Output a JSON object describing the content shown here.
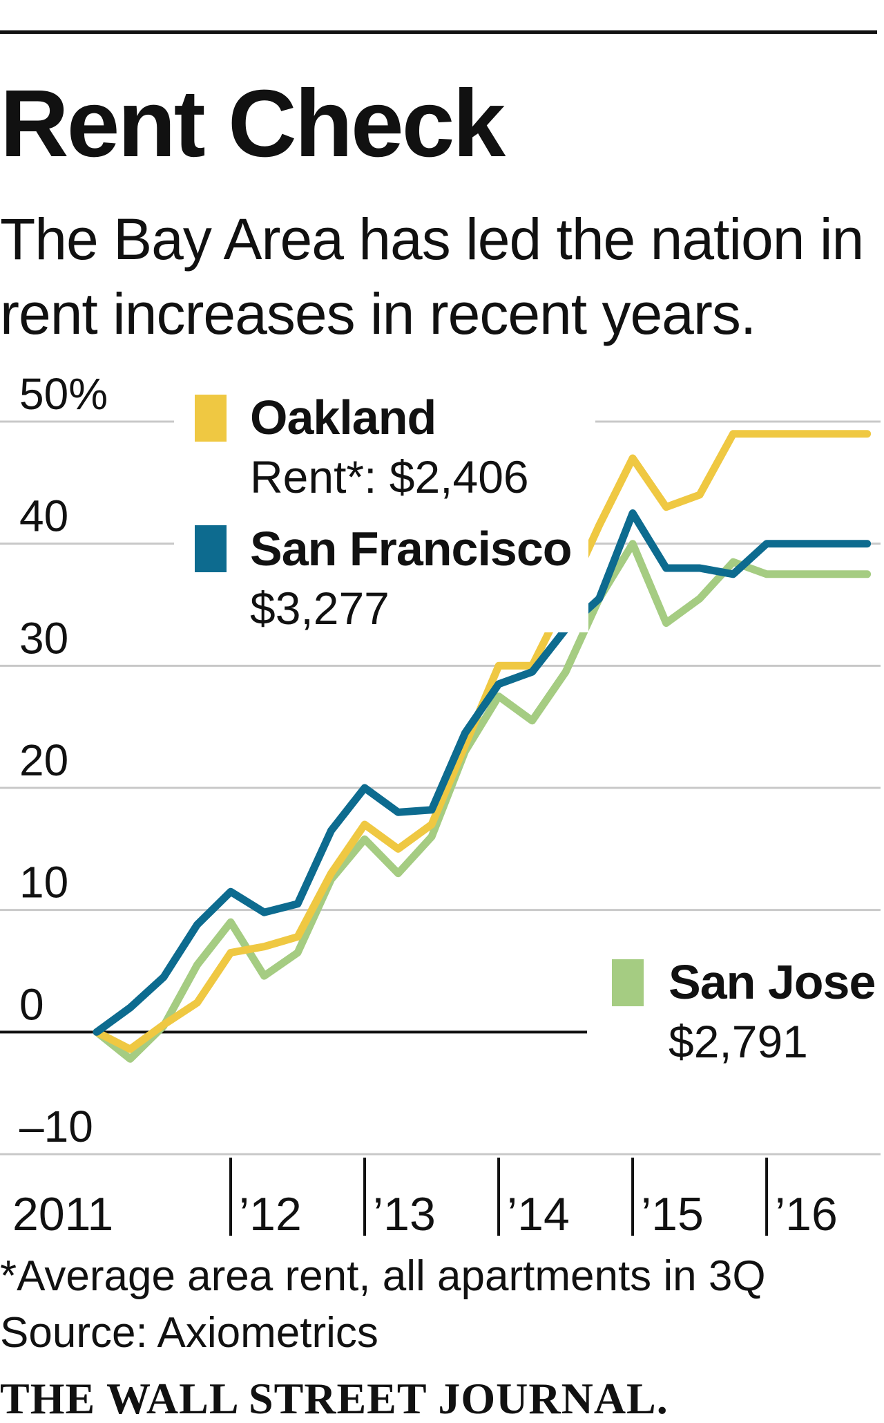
{
  "header": {
    "title": "Rent Check",
    "subtitle": "The Bay Area has led the nation in rent increases in recent years."
  },
  "footer": {
    "footnote": "*Average area rent, all apartments in 3Q",
    "source": "Source: Axiometrics",
    "logo": "THE WALL STREET JOURNAL."
  },
  "chart_data": {
    "type": "line",
    "title": "Rent Check",
    "subtitle": "The Bay Area has led the nation in rent increases in recent years.",
    "xlabel": "",
    "ylabel": "",
    "y_unit": "%",
    "ylim": [
      -10,
      50
    ],
    "yticks": [
      -10,
      0,
      10,
      20,
      30,
      40,
      50
    ],
    "ytick_labels": [
      "–10",
      "0",
      "10",
      "20",
      "30",
      "40",
      "50%"
    ],
    "xlim": [
      2011.0,
      2016.85
    ],
    "xticks": [
      2011,
      2012,
      2013,
      2014,
      2015,
      2016
    ],
    "xtick_labels": [
      "2011",
      "’12",
      "’13",
      "’14",
      "’15",
      "’16"
    ],
    "grid": true,
    "legend": "inline labels",
    "x": [
      2011.0,
      2011.25,
      2011.5,
      2011.75,
      2012.0,
      2012.25,
      2012.5,
      2012.75,
      2013.0,
      2013.25,
      2013.5,
      2013.75,
      2014.0,
      2014.25,
      2014.5,
      2014.75,
      2015.0,
      2015.25,
      2015.5,
      2015.75,
      2016.0,
      2016.25,
      2016.5,
      2016.75
    ],
    "series": [
      {
        "name": "Oakland",
        "sublabel": "Rent*: $2,406",
        "color": "#efc842",
        "values": [
          0.0,
          -1.4,
          0.6,
          2.4,
          6.5,
          7.0,
          7.8,
          13.0,
          17.0,
          15.0,
          17.0,
          23.5,
          30.0,
          30.0,
          35.5,
          41.5,
          47.0,
          43.0,
          44.0,
          49.0,
          49.0,
          49.0,
          49.0,
          49.0
        ]
      },
      {
        "name": "San Francisco",
        "sublabel": "$3,277",
        "color": "#0d6b8f",
        "values": [
          0.0,
          2.0,
          4.5,
          8.8,
          11.5,
          9.8,
          10.5,
          16.5,
          20.0,
          18.0,
          18.2,
          24.5,
          28.5,
          29.5,
          33.0,
          35.5,
          42.5,
          38.0,
          38.0,
          37.5,
          40.0,
          40.0,
          40.0,
          40.0
        ]
      },
      {
        "name": "San Jose",
        "sublabel": "$2,791",
        "color": "#a5cc82",
        "values": [
          0.0,
          -2.2,
          0.5,
          5.5,
          9.0,
          4.6,
          6.5,
          12.5,
          15.8,
          13.0,
          16.0,
          23.0,
          27.5,
          25.5,
          29.5,
          35.5,
          40.0,
          33.5,
          35.5,
          38.5,
          37.5,
          37.5,
          37.5,
          37.5
        ]
      }
    ]
  }
}
